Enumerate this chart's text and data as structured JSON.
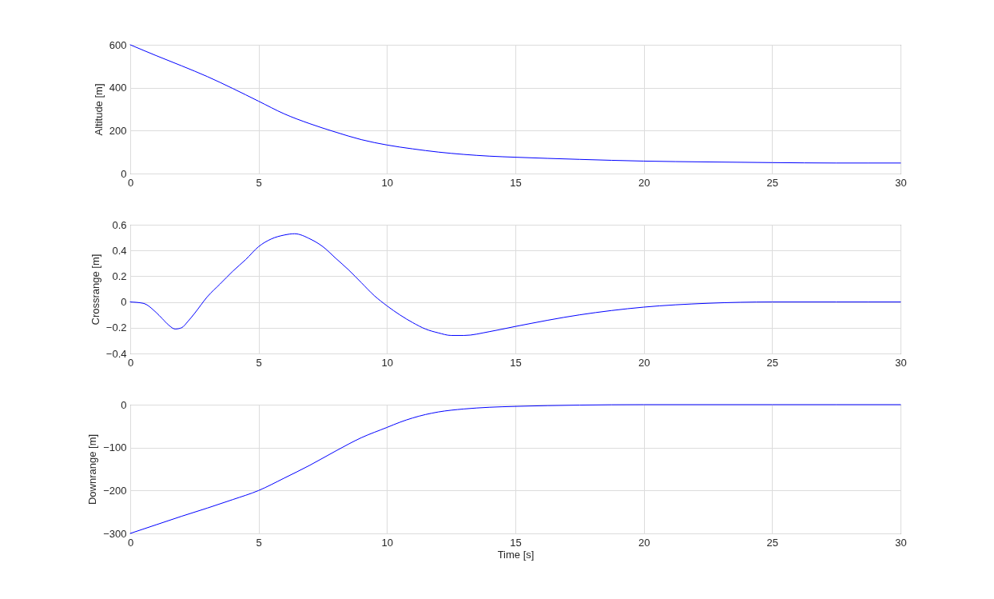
{
  "chart_data": [
    {
      "type": "line",
      "ylabel": "Altitude [m]",
      "x": [
        0,
        1,
        2,
        3,
        4,
        5,
        6,
        7,
        8,
        9,
        10,
        11,
        12,
        13,
        14,
        15,
        17.5,
        20,
        22.5,
        25,
        27.5,
        30
      ],
      "series": [
        {
          "color": "#0000ff",
          "values": [
            600,
            550,
            502,
            452,
            396,
            337,
            278,
            232,
            193,
            158,
            133,
            115,
            100,
            89,
            81,
            76,
            66,
            58,
            54,
            51,
            49,
            49
          ]
        }
      ],
      "xlim": [
        0,
        30
      ],
      "xticks": [
        0,
        5,
        10,
        15,
        20,
        25,
        30
      ],
      "ylim": [
        0,
        600
      ],
      "yticks": [
        0,
        200,
        400,
        600
      ],
      "grid": true
    },
    {
      "type": "line",
      "ylabel": "Crossrange [m]",
      "x": [
        0,
        0.5,
        1,
        1.25,
        1.5,
        1.75,
        2,
        2.25,
        2.5,
        3,
        3.5,
        4,
        4.5,
        5,
        5.5,
        6,
        6.4,
        7,
        7.5,
        8,
        8.5,
        9,
        9.5,
        10,
        10.5,
        11,
        11.5,
        12,
        12.5,
        13,
        14,
        15,
        17.5,
        20,
        22.5,
        25,
        27.5,
        30
      ],
      "series": [
        {
          "color": "#0000ff",
          "values": [
            0,
            -0.01,
            -0.08,
            -0.13,
            -0.18,
            -0.21,
            -0.2,
            -0.15,
            -0.09,
            0.04,
            0.14,
            0.24,
            0.33,
            0.43,
            0.49,
            0.52,
            0.53,
            0.49,
            0.43,
            0.34,
            0.25,
            0.15,
            0.05,
            -0.03,
            -0.1,
            -0.16,
            -0.21,
            -0.24,
            -0.26,
            -0.26,
            -0.23,
            -0.19,
            -0.1,
            -0.04,
            -0.01,
            0,
            0,
            0
          ]
        }
      ],
      "xlim": [
        0,
        30
      ],
      "xticks": [
        0,
        5,
        10,
        15,
        20,
        25,
        30
      ],
      "ylim": [
        -0.4,
        0.6
      ],
      "yticks": [
        -0.4,
        -0.2,
        0,
        0.2,
        0.4,
        0.6
      ],
      "grid": true
    },
    {
      "type": "line",
      "xlabel": "Time [s]",
      "ylabel": "Downrange [m]",
      "x": [
        0,
        1,
        2,
        3,
        4,
        5,
        6,
        7,
        8,
        9,
        10,
        10.5,
        11,
        11.5,
        12,
        13,
        14,
        15,
        17.5,
        20,
        25,
        30
      ],
      "series": [
        {
          "color": "#0000ff",
          "values": [
            -300,
            -280,
            -260,
            -241,
            -221,
            -200,
            -171,
            -141,
            -108,
            -77,
            -53,
            -41,
            -31,
            -23,
            -17,
            -10,
            -6,
            -4,
            -1,
            0,
            0,
            0
          ]
        }
      ],
      "xlim": [
        0,
        30
      ],
      "xticks": [
        0,
        5,
        10,
        15,
        20,
        25,
        30
      ],
      "ylim": [
        -300,
        0
      ],
      "yticks": [
        -300,
        -200,
        -100,
        0
      ],
      "grid": true
    }
  ]
}
